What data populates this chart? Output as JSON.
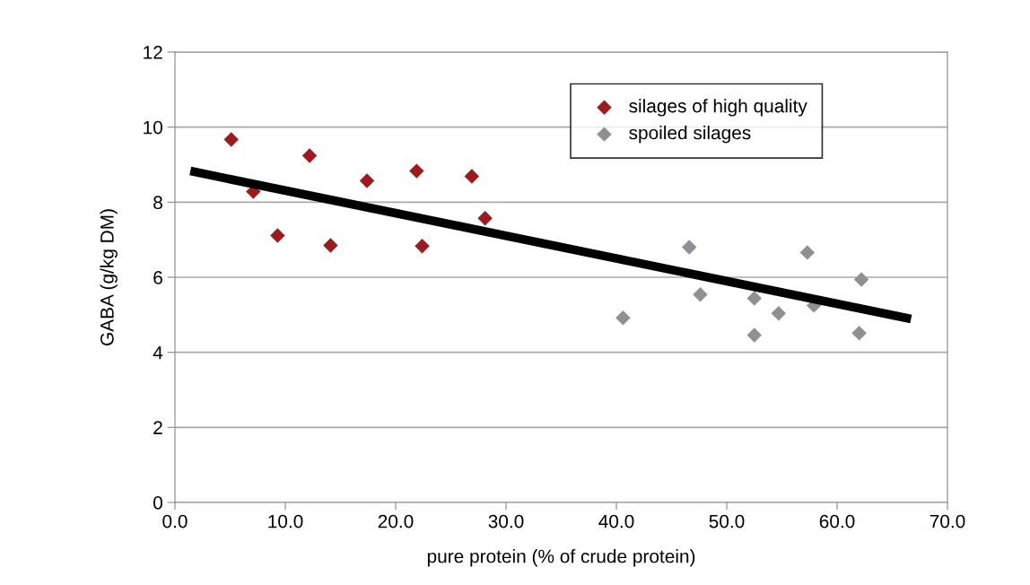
{
  "chart_data": {
    "type": "scatter",
    "xlabel": "pure protein (% of crude protein)",
    "ylabel": "GABA (g/kg DM)",
    "xlim": [
      0,
      70
    ],
    "xticks": [
      {
        "value": 0,
        "label": "0.0"
      },
      {
        "value": 10,
        "label": "10.0"
      },
      {
        "value": 20,
        "label": "20.0"
      },
      {
        "value": 30,
        "label": "30.0"
      },
      {
        "value": 40,
        "label": "40.0"
      },
      {
        "value": 50,
        "label": "50.0"
      },
      {
        "value": 60,
        "label": "60.0"
      },
      {
        "value": 70,
        "label": "70.0"
      }
    ],
    "ylim": [
      0,
      12
    ],
    "yticks": [
      0,
      2,
      4,
      6,
      8,
      10,
      12
    ],
    "grid": "y",
    "legend": "top right",
    "marker": "diamond",
    "series": [
      {
        "name": "silages of high quality",
        "color": "#9b1b1e",
        "x": [
          5.1,
          7.1,
          9.3,
          12.2,
          14.1,
          17.4,
          21.9,
          22.4,
          26.9,
          28.1
        ],
        "values": [
          9.67,
          8.28,
          7.11,
          9.24,
          6.85,
          8.57,
          8.83,
          6.83,
          8.69,
          7.57
        ]
      },
      {
        "name": "spoiled silages",
        "color": "#8f9096",
        "x": [
          40.6,
          46.6,
          47.6,
          52.5,
          52.5,
          54.7,
          57.3,
          57.9,
          62.2,
          62.0
        ],
        "values": [
          4.92,
          6.8,
          5.54,
          5.44,
          4.46,
          5.04,
          6.66,
          5.25,
          5.94,
          4.51
        ]
      },
      {
        "type": "line",
        "marker": "none",
        "color": "#000000",
        "x": [
          1.4,
          66.7
        ],
        "values": [
          8.83,
          4.89
        ]
      }
    ]
  }
}
